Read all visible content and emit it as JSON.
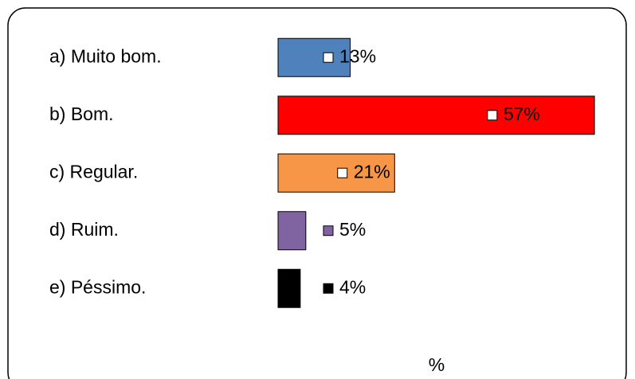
{
  "chart_data": {
    "type": "barh",
    "categories": [
      "a) Muito bom.",
      "b) Bom.",
      "c) Regular.",
      "d) Ruim.",
      "e) Péssimo."
    ],
    "values": [
      13,
      57,
      21,
      5,
      4
    ],
    "value_labels": [
      "13%",
      "57%",
      "21%",
      "5%",
      "4%"
    ],
    "colors": [
      "#4f81bd",
      "#ff0000",
      "#f79646",
      "#8064a2",
      "#000000"
    ],
    "xlabel": "%",
    "xlim": [
      0,
      60
    ]
  }
}
